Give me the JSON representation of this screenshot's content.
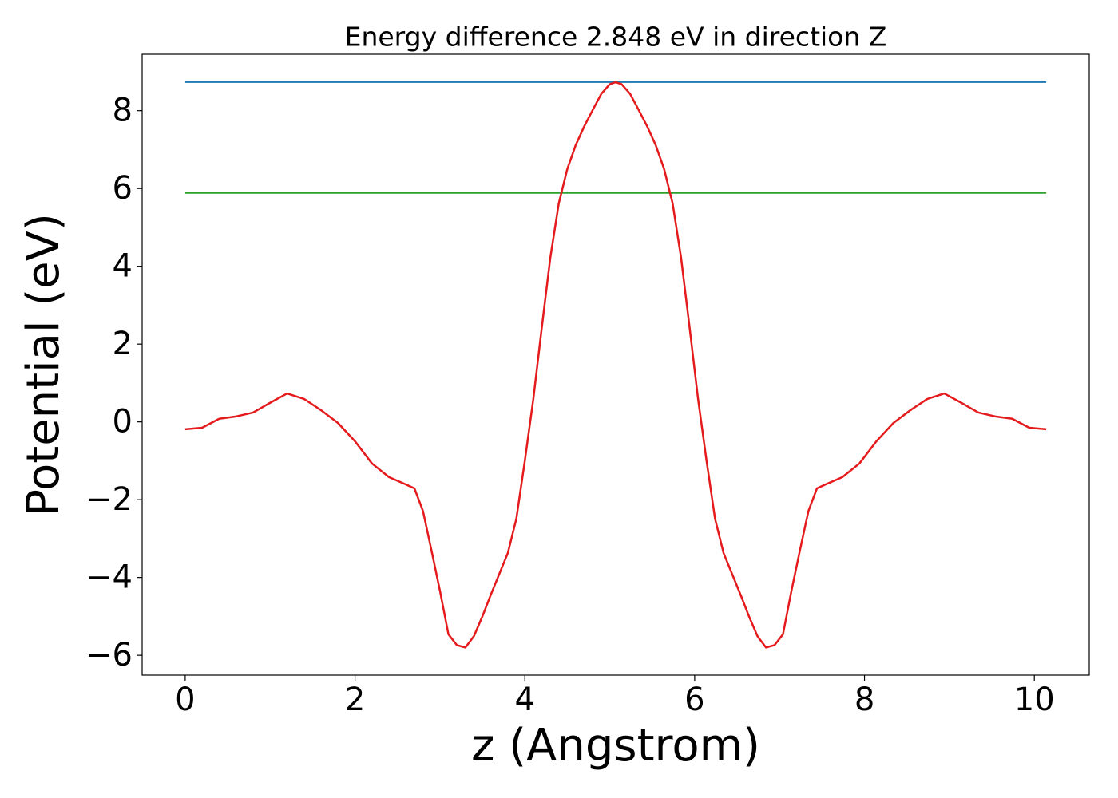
{
  "chart_data": {
    "type": "line",
    "title": "Energy difference 2.848 eV in direction Z",
    "x_label": "z (Angstrom)",
    "y_label": "Potential (eV)",
    "xlim": [
      -0.507,
      10.647
    ],
    "ylim": [
      -6.51,
      9.45
    ],
    "xticks": [
      0,
      2,
      4,
      6,
      8,
      10
    ],
    "yticks": [
      {
        "value": -6,
        "label": "−6"
      },
      {
        "value": -4,
        "label": "−4"
      },
      {
        "value": -2,
        "label": "−2"
      },
      0,
      2,
      4,
      6,
      8
    ],
    "x": [
      0,
      0.2,
      0.4,
      0.6,
      0.8,
      1.0,
      1.2,
      1.4,
      1.6,
      1.8,
      2.0,
      2.2,
      2.4,
      2.6,
      2.7,
      2.8,
      2.9,
      3.0,
      3.1,
      3.2,
      3.3,
      3.4,
      3.5,
      3.6,
      3.8,
      3.9,
      4.0,
      4.1,
      4.2,
      4.3,
      4.4,
      4.5,
      4.6,
      4.7,
      4.8,
      4.9,
      5.0,
      5.07,
      5.14,
      5.24,
      5.34,
      5.44,
      5.54,
      5.64,
      5.74,
      5.84,
      5.94,
      6.04,
      6.14,
      6.24,
      6.34,
      6.54,
      6.64,
      6.74,
      6.84,
      6.94,
      7.04,
      7.14,
      7.24,
      7.34,
      7.44,
      7.54,
      7.74,
      7.94,
      8.14,
      8.34,
      8.54,
      8.74,
      8.94,
      9.14,
      9.34,
      9.54,
      9.74,
      9.94,
      10.14
    ],
    "series": [
      {
        "color": "#1f77b4",
        "values": [
          8.734,
          null,
          null,
          null,
          null,
          null,
          null,
          null,
          null,
          null,
          null,
          null,
          null,
          null,
          null,
          null,
          null,
          null,
          null,
          null,
          null,
          null,
          null,
          null,
          null,
          null,
          null,
          null,
          null,
          null,
          null,
          null,
          null,
          null,
          null,
          null,
          null,
          null,
          null,
          null,
          null,
          null,
          null,
          null,
          null,
          null,
          null,
          null,
          null,
          null,
          null,
          null,
          null,
          null,
          null,
          null,
          null,
          null,
          null,
          null,
          null,
          null,
          null,
          null,
          null,
          null,
          null,
          null,
          null,
          null,
          null,
          null,
          null,
          null,
          8.734
        ]
      },
      {
        "color": "#2ca02c",
        "values": [
          5.886,
          null,
          null,
          null,
          null,
          null,
          null,
          null,
          null,
          null,
          null,
          null,
          null,
          null,
          null,
          null,
          null,
          null,
          null,
          null,
          null,
          null,
          null,
          null,
          null,
          null,
          null,
          null,
          null,
          null,
          null,
          null,
          null,
          null,
          null,
          null,
          null,
          null,
          null,
          null,
          null,
          null,
          null,
          null,
          null,
          null,
          null,
          null,
          null,
          null,
          null,
          null,
          null,
          null,
          null,
          null,
          null,
          null,
          null,
          null,
          null,
          null,
          null,
          null,
          null,
          null,
          null,
          null,
          null,
          null,
          null,
          null,
          null,
          null,
          5.886
        ]
      },
      {
        "color": "#e41a1c",
        "values": [
          -0.19,
          -0.15,
          0.08,
          0.14,
          0.24,
          0.49,
          0.73,
          0.59,
          0.3,
          -0.03,
          -0.5,
          -1.07,
          -1.42,
          -1.61,
          -1.71,
          -2.29,
          -3.3,
          -4.34,
          -5.46,
          -5.74,
          -5.8,
          -5.51,
          -5.0,
          -4.44,
          -3.37,
          -2.49,
          -1.0,
          0.59,
          2.43,
          4.22,
          5.62,
          6.5,
          7.12,
          7.6,
          8.02,
          8.43,
          8.68,
          8.73,
          8.68,
          8.43,
          8.02,
          7.6,
          7.12,
          6.5,
          5.62,
          4.22,
          2.43,
          0.59,
          -1.0,
          -2.49,
          -3.37,
          -4.44,
          -5.0,
          -5.51,
          -5.8,
          -5.74,
          -5.46,
          -4.34,
          -3.3,
          -2.29,
          -1.71,
          -1.61,
          -1.42,
          -1.07,
          -0.5,
          -0.03,
          0.3,
          0.59,
          0.73,
          0.49,
          0.24,
          0.14,
          0.08,
          -0.15,
          -0.19
        ]
      }
    ]
  }
}
